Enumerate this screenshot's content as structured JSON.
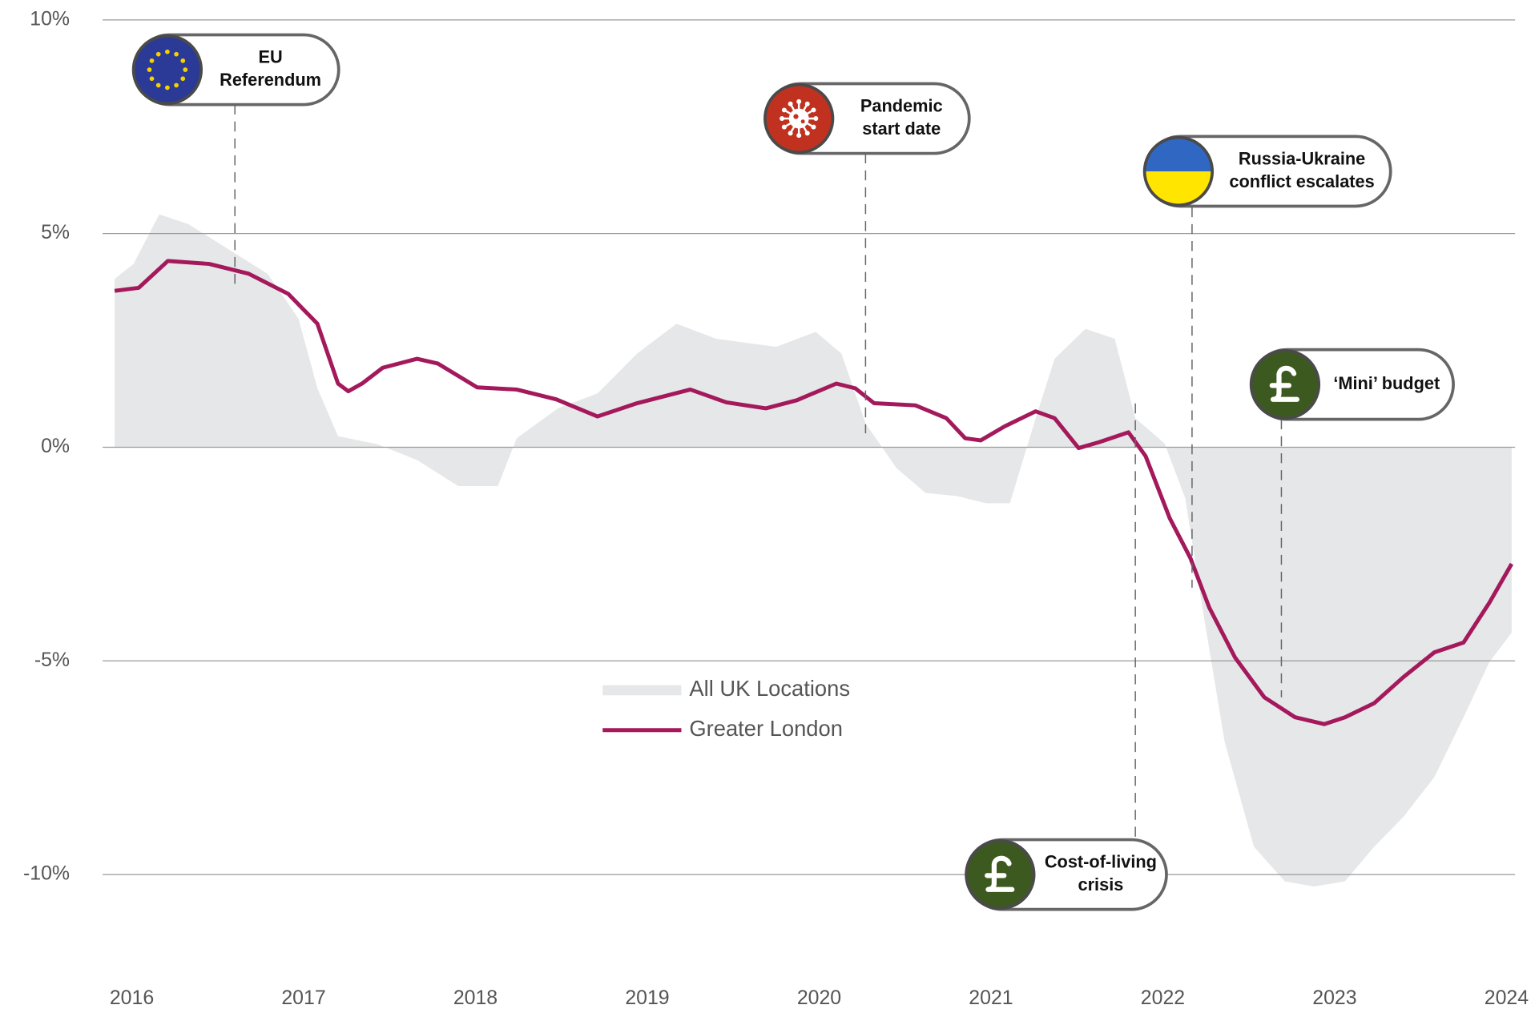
{
  "chart_data": {
    "type": "line",
    "xlim": [
      2015.83,
      2024.05
    ],
    "xticks": [
      2016,
      2017,
      2018,
      2019,
      2020,
      2021,
      2022,
      2023,
      2024
    ],
    "ylim": [
      -12,
      10
    ],
    "yticks": [
      {
        "value": 10,
        "label": "10%"
      },
      {
        "value": 5,
        "label": "5%"
      },
      {
        "value": 0,
        "label": "0%"
      },
      {
        "value": -5,
        "label": "-5%"
      },
      {
        "value": -10,
        "label": "-10%"
      }
    ],
    "grid": true,
    "series": [
      {
        "name": "All UK Locations",
        "kind": "area",
        "color": "#e6e7e8",
        "x": [
          2015.9,
          2016.01,
          2016.16,
          2016.33,
          2016.56,
          2016.79,
          2016.97,
          2017.08,
          2017.2,
          2017.43,
          2017.66,
          2017.9,
          2018.13,
          2018.24,
          2018.48,
          2018.71,
          2018.94,
          2019.17,
          2019.4,
          2019.75,
          2019.98,
          2020.13,
          2020.27,
          2020.45,
          2020.62,
          2020.8,
          2020.97,
          2021.11,
          2021.26,
          2021.37,
          2021.55,
          2021.72,
          2021.84,
          2022.01,
          2022.13,
          2022.24,
          2022.36,
          2022.53,
          2022.71,
          2022.88,
          2023.06,
          2023.23,
          2023.4,
          2023.58,
          2023.75,
          2023.9,
          2024.03
        ],
        "values": [
          3.94,
          4.29,
          5.45,
          5.22,
          4.64,
          4.06,
          3.01,
          1.38,
          0.26,
          0.07,
          -0.3,
          -0.91,
          -0.91,
          0.21,
          0.91,
          1.26,
          2.19,
          2.89,
          2.54,
          2.35,
          2.7,
          2.19,
          0.56,
          -0.49,
          -1.07,
          -1.14,
          -1.31,
          -1.31,
          0.68,
          2.07,
          2.77,
          2.54,
          0.68,
          0.09,
          -1.19,
          -3.99,
          -6.9,
          -9.35,
          -10.16,
          -10.28,
          -10.16,
          -9.35,
          -8.65,
          -7.72,
          -6.32,
          -5.03,
          -4.34
        ]
      },
      {
        "name": "Greater London",
        "kind": "line",
        "color": "#a3195b",
        "x": [
          2015.9,
          2016.04,
          2016.21,
          2016.45,
          2016.68,
          2016.91,
          2017.08,
          2017.2,
          2017.26,
          2017.34,
          2017.46,
          2017.66,
          2017.78,
          2018.01,
          2018.24,
          2018.47,
          2018.71,
          2018.94,
          2019.25,
          2019.46,
          2019.69,
          2019.87,
          2020.1,
          2020.21,
          2020.32,
          2020.56,
          2020.74,
          2020.85,
          2020.94,
          2021.08,
          2021.26,
          2021.37,
          2021.51,
          2021.63,
          2021.8,
          2021.9,
          2022.04,
          2022.16,
          2022.27,
          2022.42,
          2022.59,
          2022.77,
          2022.94,
          2023.06,
          2023.23,
          2023.4,
          2023.58,
          2023.75,
          2023.9,
          2024.03
        ],
        "values": [
          3.66,
          3.73,
          4.36,
          4.29,
          4.06,
          3.59,
          2.89,
          1.49,
          1.31,
          1.49,
          1.86,
          2.07,
          1.96,
          1.4,
          1.35,
          1.12,
          0.72,
          1.03,
          1.35,
          1.05,
          0.91,
          1.1,
          1.49,
          1.38,
          1.03,
          0.98,
          0.68,
          0.21,
          0.16,
          0.49,
          0.84,
          0.68,
          -0.02,
          0.12,
          0.35,
          -0.21,
          -1.66,
          -2.59,
          -3.75,
          -4.92,
          -5.85,
          -6.32,
          -6.48,
          -6.32,
          -5.99,
          -5.38,
          -4.8,
          -4.57,
          -3.64,
          -2.73
        ]
      }
    ],
    "annotations": [
      {
        "text": [
          "EU",
          "Referendum"
        ],
        "x": 2016.6
      },
      {
        "text": [
          "Pandemic",
          "start date"
        ],
        "x": 2020.27
      },
      {
        "text": [
          "Russia-Ukraine",
          "conflict escalates"
        ],
        "x": 2022.17
      },
      {
        "text": [
          "‘Mini’ budget"
        ],
        "x": 2022.69
      },
      {
        "text": [
          "Cost-of-living",
          "crisis"
        ],
        "x": 2021.84
      }
    ]
  }
}
